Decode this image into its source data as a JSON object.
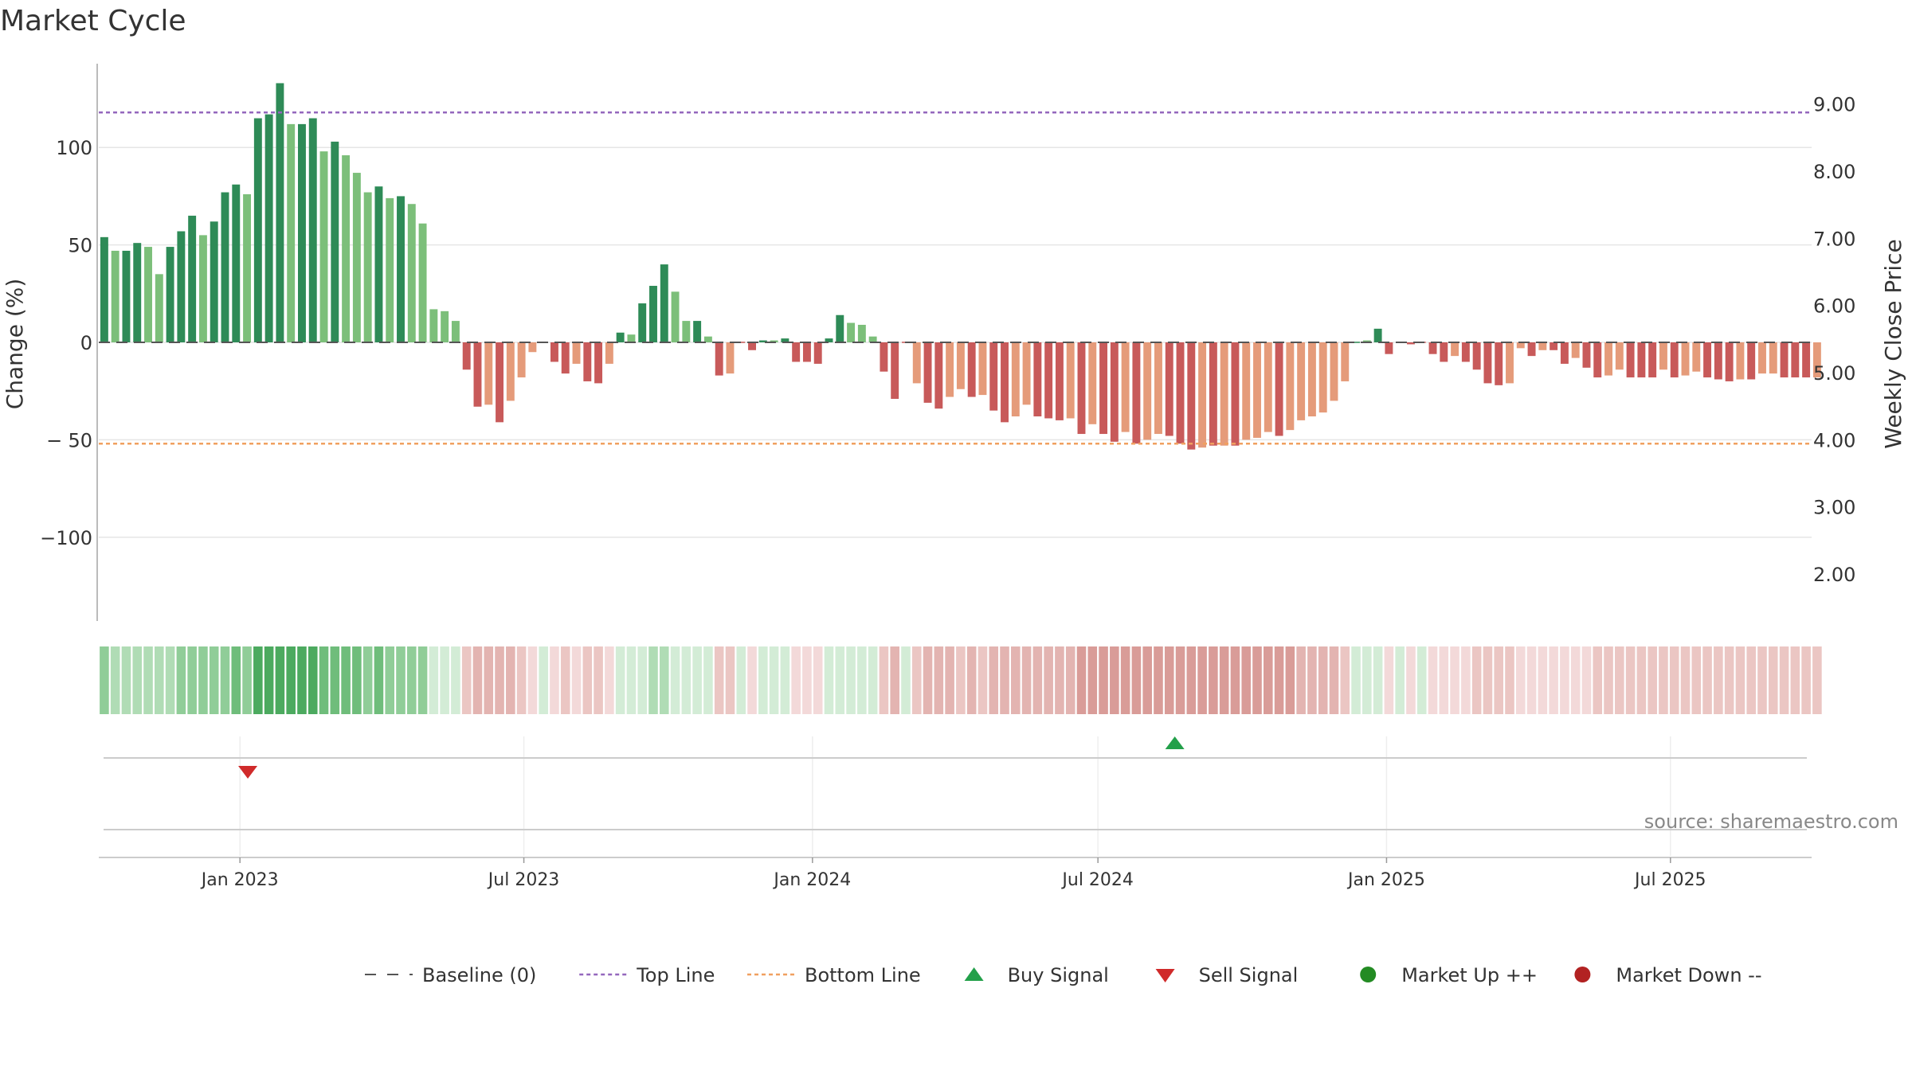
{
  "chart_data": {
    "type": "bar",
    "title": "Market Cycle",
    "ylabel": "Change (%)",
    "y2label": "Weekly Close Price",
    "ylim": [
      -143,
      143
    ],
    "y2lim": [
      1.3,
      9.6
    ],
    "yticks": [
      {
        "value": 100,
        "label": "100"
      },
      {
        "value": 50,
        "label": "50"
      },
      {
        "value": 0,
        "label": "0"
      },
      {
        "value": -50,
        "label": "−  50"
      },
      {
        "value": -100,
        "label": "−100"
      }
    ],
    "y2ticks": [
      "2.00",
      "3.00",
      "4.00",
      "5.00",
      "6.00",
      "7.00",
      "8.00",
      "9.00"
    ],
    "x_start": "2022-10-03",
    "x_end": "2025-09-29",
    "xticks": [
      {
        "date": "2023-01-01",
        "label": "Jan 2023"
      },
      {
        "date": "2023-07-01",
        "label": "Jul 2023"
      },
      {
        "date": "2024-01-01",
        "label": "Jan 2024"
      },
      {
        "date": "2024-07-01",
        "label": "Jul 2024"
      },
      {
        "date": "2025-01-01",
        "label": "Jan 2025"
      },
      {
        "date": "2025-07-01",
        "label": "Jul 2025"
      }
    ],
    "top_line": 118,
    "bottom_line": -52,
    "bars_start": "2022-10-03",
    "bars_interval_days": 7,
    "bars": [
      {
        "v": 54,
        "s": "ud"
      },
      {
        "v": 47,
        "s": "ul"
      },
      {
        "v": 47,
        "s": "ud"
      },
      {
        "v": 51,
        "s": "ud"
      },
      {
        "v": 49,
        "s": "ul"
      },
      {
        "v": 35,
        "s": "ul"
      },
      {
        "v": 49,
        "s": "ud"
      },
      {
        "v": 57,
        "s": "ud"
      },
      {
        "v": 65,
        "s": "ud"
      },
      {
        "v": 55,
        "s": "ul"
      },
      {
        "v": 62,
        "s": "ud"
      },
      {
        "v": 77,
        "s": "ud"
      },
      {
        "v": 81,
        "s": "ud"
      },
      {
        "v": 76,
        "s": "ul"
      },
      {
        "v": 115,
        "s": "ud"
      },
      {
        "v": 117,
        "s": "ud"
      },
      {
        "v": 133,
        "s": "ud"
      },
      {
        "v": 112,
        "s": "ul"
      },
      {
        "v": 112,
        "s": "ud"
      },
      {
        "v": 115,
        "s": "ud"
      },
      {
        "v": 98,
        "s": "ul"
      },
      {
        "v": 103,
        "s": "ud"
      },
      {
        "v": 96,
        "s": "ul"
      },
      {
        "v": 87,
        "s": "ul"
      },
      {
        "v": 77,
        "s": "ul"
      },
      {
        "v": 80,
        "s": "ud"
      },
      {
        "v": 74,
        "s": "ul"
      },
      {
        "v": 75,
        "s": "ud"
      },
      {
        "v": 71,
        "s": "ul"
      },
      {
        "v": 61,
        "s": "ul"
      },
      {
        "v": 17,
        "s": "ul"
      },
      {
        "v": 16,
        "s": "ul"
      },
      {
        "v": 11,
        "s": "ul"
      },
      {
        "v": -14,
        "s": "dd"
      },
      {
        "v": -33,
        "s": "dd"
      },
      {
        "v": -32,
        "s": "dl"
      },
      {
        "v": -41,
        "s": "dd"
      },
      {
        "v": -30,
        "s": "dl"
      },
      {
        "v": -18,
        "s": "dl"
      },
      {
        "v": -5,
        "s": "dl"
      },
      {
        "v": 0,
        "s": "dd"
      },
      {
        "v": -10,
        "s": "dd"
      },
      {
        "v": -16,
        "s": "dd"
      },
      {
        "v": -11,
        "s": "dl"
      },
      {
        "v": -20,
        "s": "dd"
      },
      {
        "v": -21,
        "s": "dd"
      },
      {
        "v": -11,
        "s": "dl"
      },
      {
        "v": 5,
        "s": "ud"
      },
      {
        "v": 4,
        "s": "ul"
      },
      {
        "v": 20,
        "s": "ud"
      },
      {
        "v": 29,
        "s": "ud"
      },
      {
        "v": 40,
        "s": "ud"
      },
      {
        "v": 26,
        "s": "ul"
      },
      {
        "v": 11,
        "s": "ul"
      },
      {
        "v": 11,
        "s": "ud"
      },
      {
        "v": 3,
        "s": "ul"
      },
      {
        "v": -17,
        "s": "dd"
      },
      {
        "v": -16,
        "s": "dl"
      },
      {
        "v": 0,
        "s": "dd"
      },
      {
        "v": -4,
        "s": "dd"
      },
      {
        "v": 1,
        "s": "ud"
      },
      {
        "v": 1,
        "s": "ul"
      },
      {
        "v": 2,
        "s": "ud"
      },
      {
        "v": -10,
        "s": "dd"
      },
      {
        "v": -10,
        "s": "dd"
      },
      {
        "v": -11,
        "s": "dd"
      },
      {
        "v": 2,
        "s": "ud"
      },
      {
        "v": 14,
        "s": "ud"
      },
      {
        "v": 10,
        "s": "ul"
      },
      {
        "v": 9,
        "s": "ul"
      },
      {
        "v": 3,
        "s": "ul"
      },
      {
        "v": -15,
        "s": "dd"
      },
      {
        "v": -29,
        "s": "dd"
      },
      {
        "v": 0,
        "s": "dd"
      },
      {
        "v": -21,
        "s": "dl"
      },
      {
        "v": -31,
        "s": "dd"
      },
      {
        "v": -34,
        "s": "dd"
      },
      {
        "v": -28,
        "s": "dl"
      },
      {
        "v": -24,
        "s": "dl"
      },
      {
        "v": -28,
        "s": "dd"
      },
      {
        "v": -27,
        "s": "dl"
      },
      {
        "v": -35,
        "s": "dd"
      },
      {
        "v": -41,
        "s": "dd"
      },
      {
        "v": -38,
        "s": "dl"
      },
      {
        "v": -32,
        "s": "dl"
      },
      {
        "v": -38,
        "s": "dd"
      },
      {
        "v": -39,
        "s": "dd"
      },
      {
        "v": -40,
        "s": "dd"
      },
      {
        "v": -39,
        "s": "dl"
      },
      {
        "v": -47,
        "s": "dd"
      },
      {
        "v": -42,
        "s": "dl"
      },
      {
        "v": -47,
        "s": "dd"
      },
      {
        "v": -51,
        "s": "dd"
      },
      {
        "v": -46,
        "s": "dl"
      },
      {
        "v": -52,
        "s": "dd"
      },
      {
        "v": -50,
        "s": "dl"
      },
      {
        "v": -47,
        "s": "dl"
      },
      {
        "v": -48,
        "s": "dd"
      },
      {
        "v": -52,
        "s": "dd"
      },
      {
        "v": -55,
        "s": "dd"
      },
      {
        "v": -54,
        "s": "dl"
      },
      {
        "v": -53,
        "s": "dd"
      },
      {
        "v": -53,
        "s": "dl"
      },
      {
        "v": -53,
        "s": "dd"
      },
      {
        "v": -50,
        "s": "dl"
      },
      {
        "v": -49,
        "s": "dl"
      },
      {
        "v": -46,
        "s": "dl"
      },
      {
        "v": -48,
        "s": "dd"
      },
      {
        "v": -45,
        "s": "dl"
      },
      {
        "v": -40,
        "s": "dl"
      },
      {
        "v": -38,
        "s": "dl"
      },
      {
        "v": -36,
        "s": "dl"
      },
      {
        "v": -30,
        "s": "dl"
      },
      {
        "v": -20,
        "s": "dl"
      },
      {
        "v": 0,
        "s": "ud"
      },
      {
        "v": 1,
        "s": "ul"
      },
      {
        "v": 7,
        "s": "ud"
      },
      {
        "v": -6,
        "s": "dd"
      },
      {
        "v": 0,
        "s": "dd"
      },
      {
        "v": -1,
        "s": "dd"
      },
      {
        "v": 0,
        "s": "dd"
      },
      {
        "v": -6,
        "s": "dd"
      },
      {
        "v": -10,
        "s": "dd"
      },
      {
        "v": -7,
        "s": "dl"
      },
      {
        "v": -10,
        "s": "dd"
      },
      {
        "v": -14,
        "s": "dd"
      },
      {
        "v": -21,
        "s": "dd"
      },
      {
        "v": -22,
        "s": "dd"
      },
      {
        "v": -21,
        "s": "dl"
      },
      {
        "v": -3,
        "s": "dl"
      },
      {
        "v": -7,
        "s": "dd"
      },
      {
        "v": -4,
        "s": "dl"
      },
      {
        "v": -4,
        "s": "dd"
      },
      {
        "v": -11,
        "s": "dd"
      },
      {
        "v": -8,
        "s": "dl"
      },
      {
        "v": -13,
        "s": "dd"
      },
      {
        "v": -18,
        "s": "dd"
      },
      {
        "v": -17,
        "s": "dl"
      },
      {
        "v": -14,
        "s": "dl"
      },
      {
        "v": -18,
        "s": "dd"
      },
      {
        "v": -18,
        "s": "dd"
      },
      {
        "v": -18,
        "s": "dd"
      },
      {
        "v": -14,
        "s": "dl"
      },
      {
        "v": -18,
        "s": "dd"
      },
      {
        "v": -17,
        "s": "dl"
      },
      {
        "v": -15,
        "s": "dl"
      },
      {
        "v": -18,
        "s": "dd"
      },
      {
        "v": -19,
        "s": "dd"
      },
      {
        "v": -20,
        "s": "dd"
      },
      {
        "v": -19,
        "s": "dl"
      },
      {
        "v": -19,
        "s": "dd"
      },
      {
        "v": -16,
        "s": "dl"
      },
      {
        "v": -16,
        "s": "dl"
      },
      {
        "v": -18,
        "s": "dd"
      },
      {
        "v": -18,
        "s": "dd"
      },
      {
        "v": -18,
        "s": "dd"
      },
      {
        "v": -18,
        "s": "dl"
      }
    ],
    "heat_strip": {
      "up_colors": [
        "#d3ecd6",
        "#b0dcb5",
        "#90cd98",
        "#6fbd7b",
        "#4caa5f"
      ],
      "down_colors": [
        "#f3d9d9",
        "#ebc6c3",
        "#e3b4b1",
        "#d99c98"
      ]
    },
    "signals": [
      {
        "type": "sell",
        "date": "2023-01-06"
      },
      {
        "type": "buy",
        "date": "2024-08-19"
      }
    ],
    "colors": {
      "up_dark": "#2e8b57",
      "up_light": "#7cbf7a",
      "down_dark": "#c85a5a",
      "down_light": "#e59b7a",
      "top_line": "#9467bd",
      "bottom_line": "#f0a060",
      "buy": "#23a04a",
      "sell": "#d02a2a",
      "market_up": "#238b23",
      "market_down": "#b22222"
    },
    "legend": [
      {
        "key": "baseline",
        "label": "Baseline (0)"
      },
      {
        "key": "top",
        "label": "Top Line"
      },
      {
        "key": "bottom",
        "label": "Bottom Line"
      },
      {
        "key": "buy",
        "label": "Buy Signal"
      },
      {
        "key": "sell",
        "label": "Sell Signal"
      },
      {
        "key": "mup",
        "label": "Market Up ++"
      },
      {
        "key": "mdown",
        "label": "Market Down --"
      }
    ],
    "legend_position": "bottom",
    "source": "source: sharemaestro.com"
  }
}
